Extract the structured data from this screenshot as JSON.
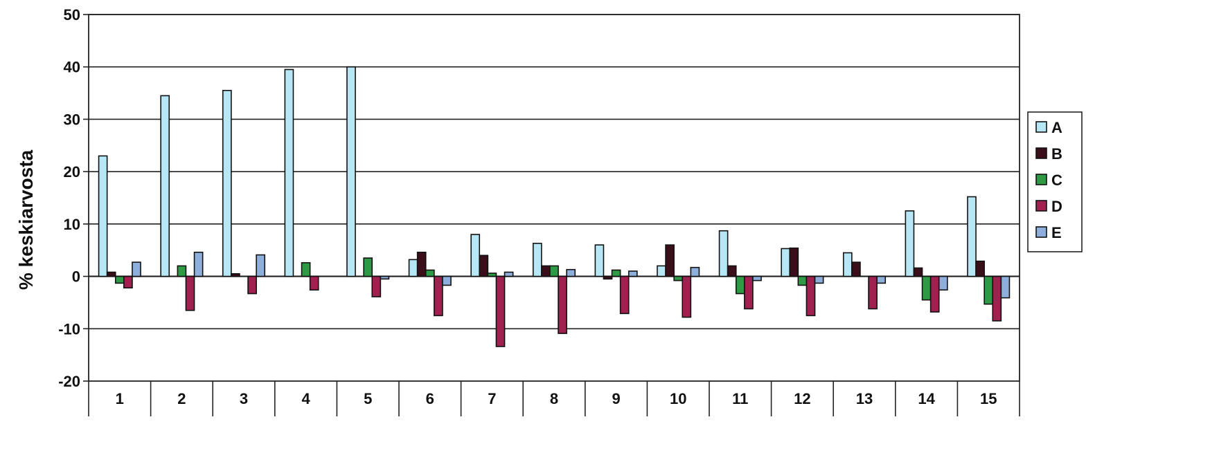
{
  "chart_data": {
    "type": "bar",
    "title": "",
    "xlabel": "",
    "ylabel": "% keskiarvosta",
    "ylim": [
      -20,
      50
    ],
    "yticks": [
      50,
      40,
      30,
      20,
      10,
      0,
      -10,
      -20
    ],
    "grid": true,
    "legend_position": "right",
    "categories": [
      "1",
      "2",
      "3",
      "4",
      "5",
      "6",
      "7",
      "8",
      "9",
      "10",
      "11",
      "12",
      "13",
      "14",
      "15"
    ],
    "series": [
      {
        "name": "A",
        "color": "#b7e6f4",
        "values": [
          23,
          34.5,
          35.5,
          39.5,
          40,
          3.2,
          8,
          6.3,
          6,
          2,
          8.7,
          5.3,
          4.5,
          12.5,
          15.2
        ]
      },
      {
        "name": "B",
        "color": "#3a0f1a",
        "values": [
          0.8,
          0,
          0.5,
          0,
          0,
          4.6,
          4,
          2,
          -0.5,
          6,
          2,
          5.4,
          2.7,
          1.6,
          2.9
        ]
      },
      {
        "name": "C",
        "color": "#2e9a45",
        "values": [
          -1.3,
          2,
          0,
          2.6,
          3.5,
          1.2,
          0.6,
          2,
          1.2,
          -0.8,
          -3.3,
          -1.7,
          0,
          -4.5,
          -5.3
        ]
      },
      {
        "name": "D",
        "color": "#9e2150",
        "values": [
          -2.2,
          -6.5,
          -3.3,
          -2.6,
          -3.9,
          -7.5,
          -13.4,
          -10.9,
          -7.1,
          -7.8,
          -6.2,
          -7.5,
          -6.2,
          -6.8,
          -8.5
        ]
      },
      {
        "name": "E",
        "color": "#8eaedc",
        "values": [
          2.7,
          4.6,
          4.1,
          0,
          -0.5,
          -1.7,
          0.8,
          1.3,
          1,
          1.7,
          -0.8,
          -1.3,
          -1.3,
          -2.6,
          -4.1
        ]
      }
    ]
  }
}
